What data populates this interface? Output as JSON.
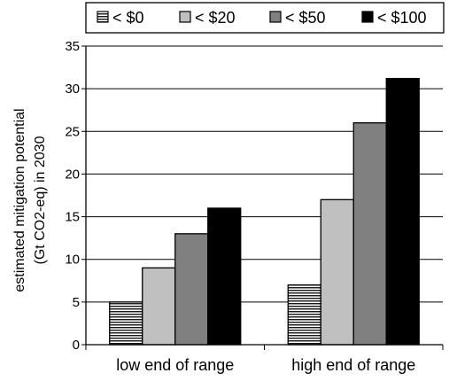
{
  "chart_data": {
    "type": "bar",
    "categories": [
      "low end of range",
      "high end of range"
    ],
    "series": [
      {
        "name": "< $0",
        "values": [
          5,
          7
        ],
        "color": "#ffffff",
        "pattern": "horizontal-lines"
      },
      {
        "name": "< $20",
        "values": [
          9,
          17
        ],
        "color": "#c0c0c0",
        "pattern": "solid"
      },
      {
        "name": "< $50",
        "values": [
          13,
          26
        ],
        "color": "#808080",
        "pattern": "solid"
      },
      {
        "name": "< $100",
        "values": [
          16,
          31.2
        ],
        "color": "#000000",
        "pattern": "solid"
      }
    ],
    "ylabel": [
      "estimated mitigation potential",
      "(Gt CO2-eq) in 2030"
    ],
    "xlabel": "",
    "ylim": [
      0,
      35
    ],
    "yticks": [
      0,
      5,
      10,
      15,
      20,
      25,
      30,
      35
    ],
    "grid": true,
    "legend_position": "top"
  }
}
